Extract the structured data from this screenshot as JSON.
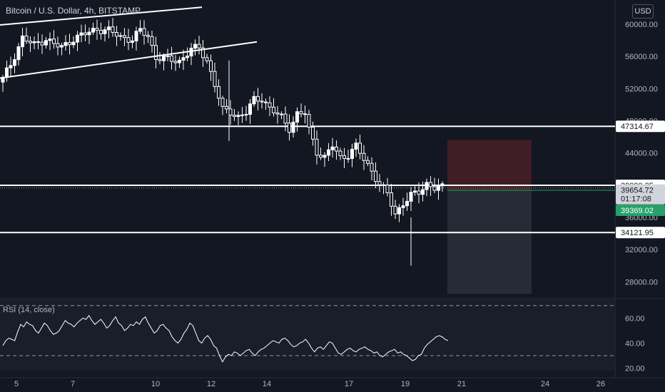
{
  "header": {
    "title": "Bitcoin / U.S. Dollar, 4h, BITSTAMP",
    "currency": "USD"
  },
  "rsi": {
    "label": "RSI (14, close)",
    "ticks": [
      "60.00",
      "40.00",
      "20.00"
    ]
  },
  "colors": {
    "background": "#131722",
    "up": "#ffffff",
    "down": "#ffffff",
    "grid": "#2a2e39",
    "green_label": "#26a269",
    "stop_zone": "#4a1f26",
    "target_zone": "#2a2e39"
  },
  "chart_data": [
    {
      "type": "candlestick",
      "title": "Bitcoin / U.S. Dollar, 4h, BITSTAMP",
      "ylabel": "USD",
      "ylim": [
        26000,
        63000
      ],
      "y_ticks": [
        "60000.00",
        "56000.00",
        "52000.00",
        "48000.00",
        "44000.00",
        "40000.00",
        "36000.00",
        "32000.00",
        "28000.00"
      ],
      "x_ticks": [
        "5",
        "7",
        "10",
        "12",
        "14",
        "17",
        "19",
        "21",
        "24",
        "26"
      ],
      "price_labels": [
        {
          "name": "level-1",
          "value": "47314.67",
          "style": "line"
        },
        {
          "name": "level-2",
          "value": "39990.25",
          "style": "line"
        },
        {
          "name": "last-price",
          "value": "39654.72",
          "style": "last"
        },
        {
          "name": "countdown",
          "value": "01:17:08",
          "style": "countdown"
        },
        {
          "name": "entry",
          "value": "39369.02",
          "style": "green"
        },
        {
          "name": "level-3",
          "value": "34121.95",
          "style": "line"
        }
      ],
      "close_path": [
        {
          "x": 0,
          "close": 53200
        },
        {
          "x": 2,
          "close": 55000
        },
        {
          "x": 5,
          "close": 58300
        },
        {
          "x": 8,
          "close": 57400
        },
        {
          "x": 11,
          "close": 58200
        },
        {
          "x": 13,
          "close": 57500
        },
        {
          "x": 15,
          "close": 57100
        },
        {
          "x": 18,
          "close": 58200
        },
        {
          "x": 21,
          "close": 58800
        },
        {
          "x": 24,
          "close": 59400
        },
        {
          "x": 27,
          "close": 59200
        },
        {
          "x": 30,
          "close": 58400
        },
        {
          "x": 33,
          "close": 58100
        },
        {
          "x": 35,
          "close": 59200
        },
        {
          "x": 37,
          "close": 58500
        },
        {
          "x": 39,
          "close": 55900
        },
        {
          "x": 42,
          "close": 55600
        },
        {
          "x": 45,
          "close": 55400
        },
        {
          "x": 48,
          "close": 56900
        },
        {
          "x": 50,
          "close": 57000
        },
        {
          "x": 52,
          "close": 55500
        },
        {
          "x": 54,
          "close": 52500
        },
        {
          "x": 56,
          "close": 49300
        },
        {
          "x": 58,
          "close": 49100
        },
        {
          "x": 60,
          "close": 48500
        },
        {
          "x": 62,
          "close": 49000
        },
        {
          "x": 64,
          "close": 50600
        },
        {
          "x": 66,
          "close": 50800
        },
        {
          "x": 68,
          "close": 49500
        },
        {
          "x": 71,
          "close": 48400
        },
        {
          "x": 73,
          "close": 47100
        },
        {
          "x": 75,
          "close": 48800
        },
        {
          "x": 77,
          "close": 48900
        },
        {
          "x": 78,
          "close": 46900
        },
        {
          "x": 80,
          "close": 44200
        },
        {
          "x": 82,
          "close": 43400
        },
        {
          "x": 84,
          "close": 44900
        },
        {
          "x": 86,
          "close": 43400
        },
        {
          "x": 88,
          "close": 43800
        },
        {
          "x": 90,
          "close": 44800
        },
        {
          "x": 92,
          "close": 43200
        },
        {
          "x": 94,
          "close": 41800
        },
        {
          "x": 96,
          "close": 40100
        },
        {
          "x": 98,
          "close": 38900
        },
        {
          "x": 100,
          "close": 36400
        },
        {
          "x": 102,
          "close": 37800
        },
        {
          "x": 104,
          "close": 38700
        },
        {
          "x": 106,
          "close": 39100
        },
        {
          "x": 108,
          "close": 40200
        },
        {
          "x": 110,
          "close": 39700
        },
        {
          "x": 112,
          "close": 39654
        }
      ],
      "annotations": [
        {
          "type": "trendline",
          "from": {
            "x": 0,
            "close": 59900
          },
          "to": {
            "x": 50,
            "close": 62100
          }
        },
        {
          "type": "trendline",
          "from": {
            "x": 0,
            "close": 53300
          },
          "to": {
            "x": 63,
            "close": 57800
          }
        },
        {
          "type": "hline",
          "value": 47314.67
        },
        {
          "type": "hline",
          "value": 39990.25
        },
        {
          "type": "hline",
          "value": 34121.95
        },
        {
          "type": "position",
          "entry": 39369.02,
          "stop": 45600,
          "target": 26500
        }
      ]
    },
    {
      "type": "line",
      "title": "RSI (14, close)",
      "ylim": [
        18,
        75
      ],
      "y_ticks": [
        "60.00",
        "40.00",
        "20.00"
      ],
      "levels": [
        70,
        30
      ],
      "values": [
        38,
        42,
        44,
        43,
        42,
        49,
        55,
        53,
        57,
        55,
        54,
        50,
        48,
        52,
        56,
        54,
        50,
        47,
        48,
        50,
        54,
        58,
        56,
        55,
        53,
        56,
        58,
        60,
        59,
        62,
        58,
        55,
        57,
        59,
        56,
        52,
        54,
        58,
        61,
        56,
        54,
        50,
        52,
        55,
        54,
        57,
        55,
        59,
        61,
        56,
        52,
        48,
        50,
        54,
        55,
        52,
        50,
        45,
        42,
        40,
        43,
        48,
        51,
        56,
        54,
        48,
        42,
        40,
        44,
        46,
        43,
        38,
        36,
        30,
        25,
        29,
        31,
        30,
        33,
        32,
        30,
        32,
        34,
        35,
        32,
        30,
        33,
        35,
        36,
        38,
        40,
        42,
        41,
        40,
        43,
        44,
        42,
        39,
        37,
        38,
        40,
        41,
        43,
        40,
        36,
        33,
        36,
        37,
        35,
        38,
        41,
        40,
        36,
        32,
        31,
        33,
        35,
        36,
        34,
        33,
        35,
        36,
        37,
        35,
        34,
        32,
        33,
        30,
        29,
        31,
        33,
        34,
        35,
        32,
        33,
        31,
        30,
        28,
        26,
        27,
        30,
        31,
        36,
        39,
        41,
        43,
        45,
        46,
        45,
        43,
        42
      ]
    }
  ]
}
